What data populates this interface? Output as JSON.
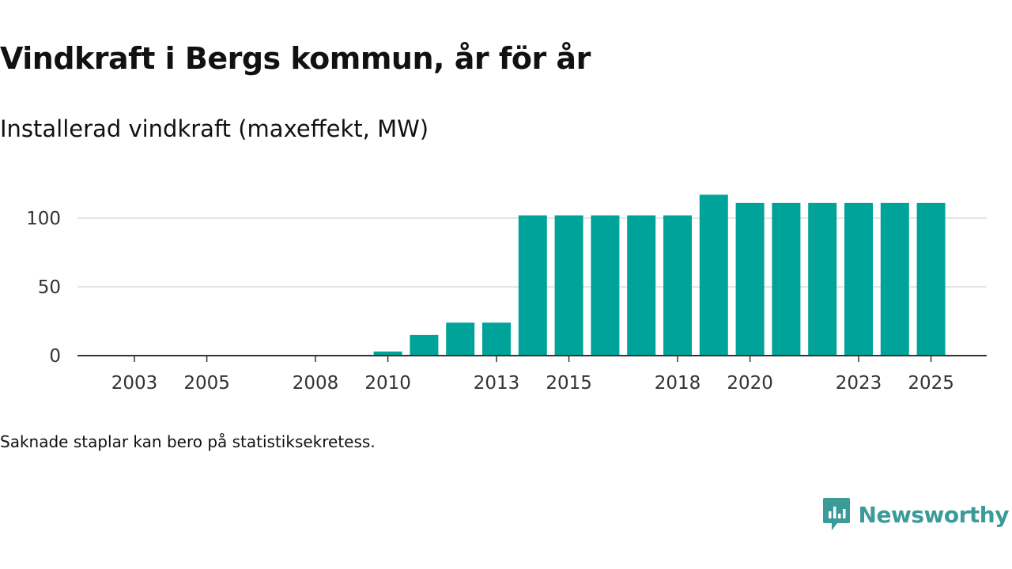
{
  "header": {
    "title": "Vindkraft i Bergs kommun, år för år",
    "subtitle": "Installerad vindkraft (maxeffekt, MW)"
  },
  "footer": {
    "note": "Saknade staplar kan bero på statistiksekretess.",
    "brand_name": "Newsworthy",
    "brand_color": "#3a9b98"
  },
  "chart_data": {
    "type": "bar",
    "title": "Vindkraft i Bergs kommun, år för år",
    "subtitle": "Installerad vindkraft (maxeffekt, MW)",
    "xlabel": "",
    "ylabel": "",
    "categories": [
      "2003",
      "2004",
      "2005",
      "2006",
      "2007",
      "2008",
      "2009",
      "2010",
      "2011",
      "2012",
      "2013",
      "2014",
      "2015",
      "2016",
      "2017",
      "2018",
      "2019",
      "2020",
      "2021",
      "2022",
      "2023",
      "2024",
      "2025"
    ],
    "values": [
      0,
      0,
      0,
      0,
      0,
      0,
      0,
      3,
      15,
      24,
      24,
      102,
      102,
      102,
      102,
      102,
      117,
      111,
      111,
      111,
      111,
      111,
      111
    ],
    "x_tick_labels": [
      "2003",
      "2005",
      "2008",
      "2010",
      "2013",
      "2015",
      "2018",
      "2020",
      "2023",
      "2025"
    ],
    "y_ticks": [
      0,
      50,
      100
    ],
    "ylim": [
      0,
      120
    ],
    "bar_color": "#00a39a",
    "grid": true
  }
}
